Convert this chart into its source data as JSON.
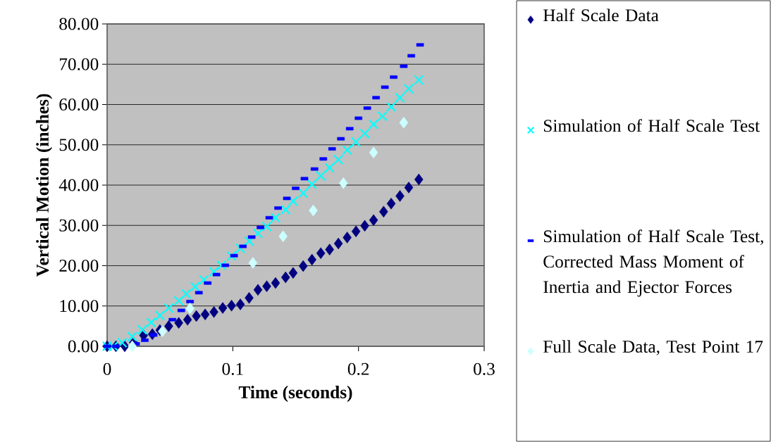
{
  "chart_data": {
    "type": "scatter",
    "xlabel": "Time (seconds)",
    "ylabel": "Vertical Motion (inches)",
    "xlim": [
      0,
      0.3
    ],
    "ylim": [
      0,
      80
    ],
    "xticks": [
      0,
      0.1,
      0.2,
      0.3
    ],
    "yticks": [
      {
        "value": 0,
        "label": "0.00"
      },
      {
        "value": 10,
        "label": "10.00"
      },
      {
        "value": 20,
        "label": "20.00"
      },
      {
        "value": 30,
        "label": "30.00"
      },
      {
        "value": 40,
        "label": "40.00"
      },
      {
        "value": 50,
        "label": "50.00"
      },
      {
        "value": 60,
        "label": "60.00"
      },
      {
        "value": 70,
        "label": "70.00"
      },
      {
        "value": 80,
        "label": "80.00"
      }
    ],
    "grid": "y",
    "legend": "right",
    "series": [
      {
        "name": "Half Scale Data",
        "color": "#000080",
        "marker": "diamond",
        "x": [
          0,
          0.007,
          0.014,
          0.021,
          0.029,
          0.036,
          0.042,
          0.049,
          0.057,
          0.064,
          0.071,
          0.078,
          0.085,
          0.092,
          0.099,
          0.106,
          0.113,
          0.12,
          0.127,
          0.134,
          0.142,
          0.148,
          0.156,
          0.163,
          0.17,
          0.177,
          0.184,
          0.191,
          0.198,
          0.205,
          0.212,
          0.22,
          0.226,
          0.233,
          0.24,
          0.248
        ],
        "values": [
          0,
          0,
          0,
          0.9,
          2.7,
          3.0,
          4.0,
          5.0,
          5.8,
          6.6,
          7.5,
          7.9,
          8.5,
          9.5,
          10.1,
          10.4,
          12.0,
          14.0,
          14.9,
          15.7,
          17.1,
          18.2,
          19.9,
          21.5,
          23.1,
          24.0,
          25.5,
          27.0,
          28.5,
          29.9,
          31.3,
          33.4,
          35.4,
          37.3,
          39.4,
          41.4
        ]
      },
      {
        "name": "Simulation of Half Scale Test",
        "color": "#00ffff",
        "marker": "cross",
        "x": [
          0,
          0.005,
          0.012,
          0.02,
          0.028,
          0.035,
          0.042,
          0.049,
          0.057,
          0.063,
          0.07,
          0.077,
          0.085,
          0.091,
          0.099,
          0.106,
          0.113,
          0.12,
          0.127,
          0.134,
          0.142,
          0.148,
          0.156,
          0.163,
          0.17,
          0.177,
          0.184,
          0.191,
          0.198,
          0.205,
          0.212,
          0.219,
          0.226,
          0.233,
          0.24,
          0.248
        ],
        "values": [
          0,
          0,
          0.9,
          2.4,
          4.1,
          5.9,
          7.6,
          9.5,
          11.3,
          13.0,
          14.8,
          16.5,
          18.5,
          20.1,
          22.4,
          24.3,
          26.1,
          28.0,
          29.7,
          31.9,
          33.9,
          36.0,
          38.0,
          40.2,
          42.3,
          44.3,
          46.3,
          48.7,
          50.7,
          52.8,
          55.1,
          57.1,
          59.4,
          61.7,
          63.9,
          66.1
        ]
      },
      {
        "name": "Simulation of Half Scale Test, Corrected Mass Moment of Inertia and Ejector Forces",
        "color": "#0000ff",
        "marker": "square",
        "x": [
          0,
          0.007,
          0.023,
          0.03,
          0.037,
          0.052,
          0.059,
          0.066,
          0.073,
          0.08,
          0.087,
          0.094,
          0.101,
          0.108,
          0.115,
          0.122,
          0.129,
          0.136,
          0.143,
          0.15,
          0.157,
          0.165,
          0.172,
          0.179,
          0.186,
          0.193,
          0.2,
          0.207,
          0.214,
          0.221,
          0.228,
          0.236,
          0.242,
          0.249
        ],
        "values": [
          0,
          0,
          0.6,
          1.5,
          2.8,
          6.6,
          8.9,
          11.1,
          13.3,
          15.7,
          17.8,
          20.1,
          22.5,
          24.8,
          27.1,
          29.5,
          31.9,
          34.3,
          36.7,
          39.2,
          41.6,
          44.0,
          46.5,
          49.0,
          51.5,
          54.0,
          56.6,
          59.1,
          61.7,
          64.3,
          66.8,
          69.5,
          72.1,
          74.8
        ]
      },
      {
        "name": "Full Scale Data, Test Point 17",
        "color": "#ccffff",
        "marker": "diamond",
        "x": [
          0.02,
          0.044,
          0.066,
          0.116,
          0.14,
          0.164,
          0.188,
          0.212,
          0.236
        ],
        "values": [
          0,
          3.7,
          9.4,
          20.7,
          27.3,
          33.7,
          40.5,
          48.1,
          55.5
        ]
      }
    ]
  }
}
